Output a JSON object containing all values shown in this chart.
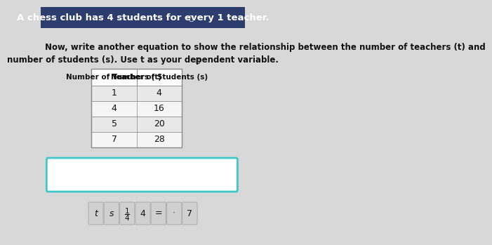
{
  "title": "A chess club has 4 students for every 1 teacher.",
  "title_bg": "#2d3e6e",
  "title_color": "#ffffff",
  "body_bg": "#d8d8d8",
  "question_text_line1": "Now, write another equation to show the relationship between the number of teachers (t) and",
  "question_text_line2": "number of students (s). Use t as your dependent variable.",
  "table_headers": [
    "Number of Teachers (t)",
    "Number of Students (s)"
  ],
  "table_data": [
    [
      1,
      4
    ],
    [
      4,
      16
    ],
    [
      5,
      20
    ],
    [
      7,
      28
    ]
  ],
  "table_header_bg": "#ffffff",
  "table_row_bg_odd": "#e8e8e8",
  "table_row_bg_even": "#f5f5f5",
  "answer_box_border": "#3ec8c8",
  "answer_box_bg": "#ffffff",
  "tiles": [
    "t",
    "s",
    "1/4",
    "4",
    "=",
    "·",
    "7"
  ],
  "tile_bg": "#d0d0d0",
  "tile_border": "#b0b0b0"
}
